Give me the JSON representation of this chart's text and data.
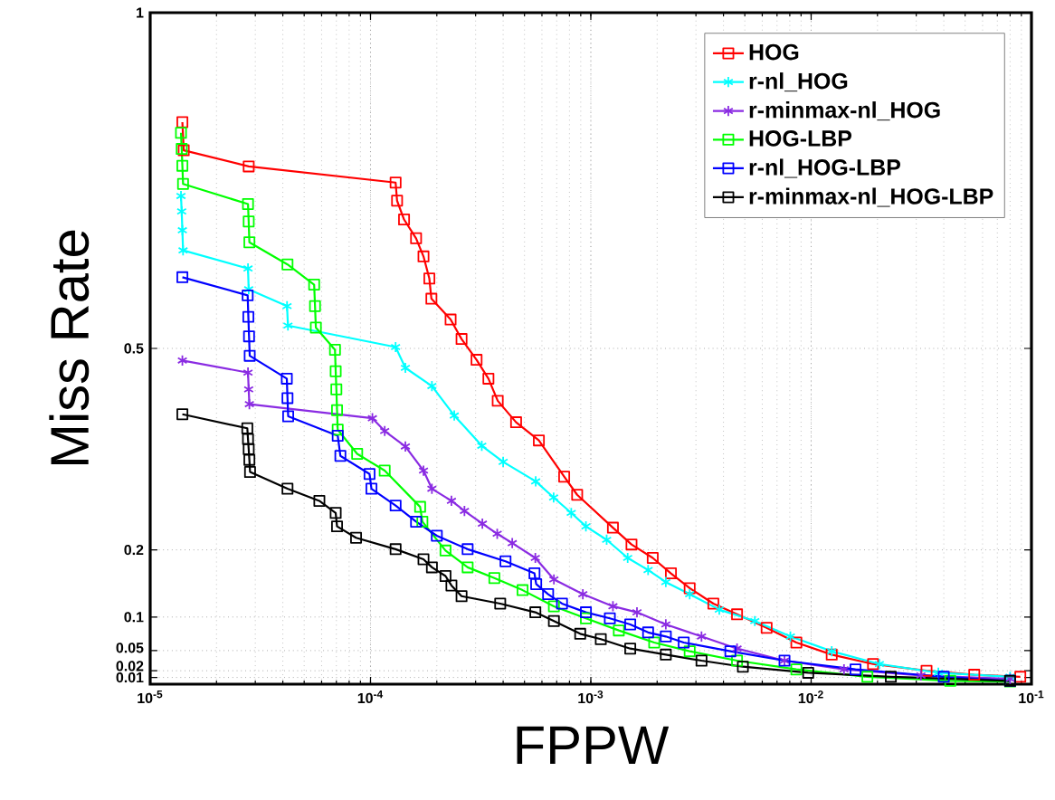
{
  "chart_data": {
    "type": "line",
    "xlabel": "FPPW",
    "ylabel": "Miss Rate",
    "log": "x",
    "grid": true,
    "legend": "top right",
    "line_style": "solid",
    "xlim": [
      1e-05,
      0.1
    ],
    "ylim": [
      0,
      1
    ],
    "xticks": [
      {
        "value": 1e-05,
        "label": "10$^{-5}$"
      },
      {
        "value": 0.0001,
        "label": "10$^{-4}$"
      },
      {
        "value": 0.001,
        "label": "10$^{-3}$"
      },
      {
        "value": 0.01,
        "label": "10$^{-2}$"
      },
      {
        "value": 0.1,
        "label": "10$^{-1}$"
      }
    ],
    "yticks": [
      0.01,
      0.02,
      0.05,
      0.1,
      0.2,
      0.5,
      1
    ],
    "series": [
      {
        "name": "HOG",
        "color": "#ff0000",
        "marker": "square",
        "x": [
          1.4e-05,
          1.42e-05,
          2.8e-05,
          0.00013,
          0.000132,
          0.000142,
          0.000161,
          0.000174,
          0.000185,
          0.000189,
          0.000231,
          0.000259,
          0.000303,
          0.000343,
          0.000378,
          0.000458,
          0.000581,
          0.000757,
          0.000867,
          0.00126,
          0.00153,
          0.00191,
          0.00231,
          0.00281,
          0.0036,
          0.00461,
          0.00628,
          0.00857,
          0.0124,
          0.0191,
          0.0334,
          0.055,
          0.089
        ],
        "values": [
          0.837,
          0.795,
          0.771,
          0.747,
          0.72,
          0.692,
          0.664,
          0.637,
          0.604,
          0.574,
          0.543,
          0.514,
          0.483,
          0.455,
          0.422,
          0.39,
          0.363,
          0.309,
          0.282,
          0.233,
          0.208,
          0.188,
          0.165,
          0.143,
          0.12,
          0.104,
          0.084,
          0.062,
          0.044,
          0.03,
          0.02,
          0.014,
          0.011
        ]
      },
      {
        "name": "r-nl_HOG",
        "color": "#00ffff",
        "marker": "cross",
        "x": [
          1.38e-05,
          1.39e-05,
          1.4e-05,
          1.41e-05,
          2.78e-05,
          2.8e-05,
          4.18e-05,
          4.22e-05,
          0.00013,
          0.000144,
          0.00019,
          0.00024,
          0.00032,
          0.0004,
          0.000562,
          0.000678,
          0.000815,
          0.00095,
          0.00118,
          0.00147,
          0.00182,
          0.00219,
          0.00281,
          0.00383,
          0.00555,
          0.00805,
          0.0124,
          0.0204,
          0.0378,
          0.08
        ],
        "values": [
          0.727,
          0.704,
          0.676,
          0.646,
          0.619,
          0.588,
          0.563,
          0.534,
          0.502,
          0.471,
          0.444,
          0.4,
          0.355,
          0.331,
          0.302,
          0.278,
          0.255,
          0.235,
          0.215,
          0.188,
          0.17,
          0.152,
          0.134,
          0.111,
          0.094,
          0.071,
          0.049,
          0.03,
          0.017,
          0.011
        ]
      },
      {
        "name": "r-minmax-nl_HOG",
        "color": "#8a2be2",
        "marker": "cross",
        "x": [
          1.4e-05,
          2.78e-05,
          2.8e-05,
          2.82e-05,
          0.000102,
          0.000116,
          0.000144,
          0.000174,
          0.00019,
          0.000233,
          0.000267,
          0.000322,
          0.000376,
          0.00044,
          0.00056,
          0.00068,
          0.00092,
          0.00126,
          0.00162,
          0.00219,
          0.00318,
          0.00461,
          0.00757,
          0.0141,
          0.0315,
          0.08
        ],
        "values": [
          0.482,
          0.464,
          0.439,
          0.417,
          0.396,
          0.377,
          0.354,
          0.318,
          0.291,
          0.273,
          0.258,
          0.239,
          0.224,
          0.21,
          0.188,
          0.156,
          0.134,
          0.116,
          0.107,
          0.089,
          0.071,
          0.053,
          0.035,
          0.022,
          0.013,
          0.008
        ]
      },
      {
        "name": "HOG-LBP",
        "color": "#00ff00",
        "marker": "square",
        "x": [
          1.38e-05,
          1.39e-05,
          1.4e-05,
          1.41e-05,
          2.78e-05,
          2.8e-05,
          2.82e-05,
          4.2e-05,
          5.55e-05,
          5.6e-05,
          5.65e-05,
          6.9e-05,
          6.95e-05,
          7e-05,
          7.05e-05,
          7.1e-05,
          8.7e-05,
          0.000116,
          0.000168,
          0.000172,
          0.000219,
          0.000276,
          0.000365,
          0.00049,
          0.00068,
          0.00095,
          0.00134,
          0.00194,
          0.00281,
          0.00461,
          0.00857,
          0.018,
          0.0428,
          0.08
        ],
        "values": [
          0.821,
          0.797,
          0.772,
          0.745,
          0.715,
          0.689,
          0.658,
          0.625,
          0.595,
          0.563,
          0.531,
          0.498,
          0.466,
          0.439,
          0.408,
          0.379,
          0.343,
          0.318,
          0.264,
          0.242,
          0.199,
          0.174,
          0.158,
          0.14,
          0.116,
          0.098,
          0.08,
          0.062,
          0.049,
          0.035,
          0.022,
          0.011,
          0.005,
          0.004
        ]
      },
      {
        "name": "r-nl_HOG-LBP",
        "color": "#0000ff",
        "marker": "square",
        "x": [
          1.4e-05,
          2.77e-05,
          2.79e-05,
          2.81e-05,
          2.83e-05,
          4.17e-05,
          4.2e-05,
          4.23e-05,
          7.1e-05,
          7.3e-05,
          9.9e-05,
          0.000101,
          0.00013,
          0.000161,
          0.0002,
          0.000276,
          0.00041,
          0.000555,
          0.000565,
          0.00064,
          0.00074,
          0.00095,
          0.00122,
          0.00151,
          0.00182,
          0.00219,
          0.00264,
          0.0043,
          0.00757,
          0.0159,
          0.04,
          0.08
        ],
        "values": [
          0.606,
          0.579,
          0.547,
          0.518,
          0.489,
          0.455,
          0.426,
          0.399,
          0.37,
          0.34,
          0.313,
          0.291,
          0.266,
          0.242,
          0.221,
          0.201,
          0.183,
          0.165,
          0.149,
          0.134,
          0.12,
          0.107,
          0.098,
          0.089,
          0.077,
          0.071,
          0.062,
          0.049,
          0.035,
          0.022,
          0.011,
          0.005
        ]
      },
      {
        "name": "r-minmax-nl_HOG-LBP",
        "color": "#000000",
        "marker": "square",
        "x": [
          1.4e-05,
          2.76e-05,
          2.78e-05,
          2.8e-05,
          2.82e-05,
          2.84e-05,
          4.2e-05,
          5.86e-05,
          6.95e-05,
          7.05e-05,
          8.6e-05,
          0.00013,
          0.000174,
          0.00019,
          0.000219,
          0.000233,
          0.000259,
          0.000388,
          0.00056,
          0.00068,
          0.000895,
          0.00111,
          0.00151,
          0.00219,
          0.00318,
          0.0049,
          0.0097,
          0.023,
          0.08
        ],
        "values": [
          0.402,
          0.381,
          0.365,
          0.35,
          0.334,
          0.316,
          0.291,
          0.273,
          0.255,
          0.235,
          0.218,
          0.201,
          0.186,
          0.174,
          0.161,
          0.147,
          0.131,
          0.12,
          0.107,
          0.094,
          0.075,
          0.067,
          0.053,
          0.044,
          0.035,
          0.026,
          0.017,
          0.011,
          0.005
        ]
      }
    ]
  }
}
